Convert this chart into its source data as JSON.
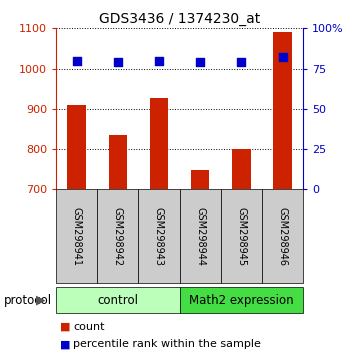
{
  "title": "GDS3436 / 1374230_at",
  "samples": [
    "GSM298941",
    "GSM298942",
    "GSM298943",
    "GSM298944",
    "GSM298945",
    "GSM298946"
  ],
  "counts": [
    910,
    835,
    928,
    747,
    800,
    1090
  ],
  "percentile_ranks": [
    80,
    79,
    80,
    79,
    79,
    82
  ],
  "ylim_left": [
    700,
    1100
  ],
  "ylim_right": [
    0,
    100
  ],
  "yticks_left": [
    700,
    800,
    900,
    1000,
    1100
  ],
  "yticks_right": [
    0,
    25,
    50,
    75,
    100
  ],
  "bar_color": "#cc2200",
  "dot_color": "#0000cc",
  "control_color": "#bbffbb",
  "math2_color": "#44dd44",
  "sample_box_color": "#cccccc",
  "control_label": "control",
  "math2_label": "Math2 expression",
  "protocol_label": "protocol",
  "legend_count": "count",
  "legend_pct": "percentile rank within the sample",
  "n_control": 3,
  "n_math2": 3,
  "bar_width": 0.45,
  "dot_size": 40,
  "title_fontsize": 10,
  "tick_fontsize": 8,
  "label_fontsize": 8,
  "legend_fontsize": 8
}
